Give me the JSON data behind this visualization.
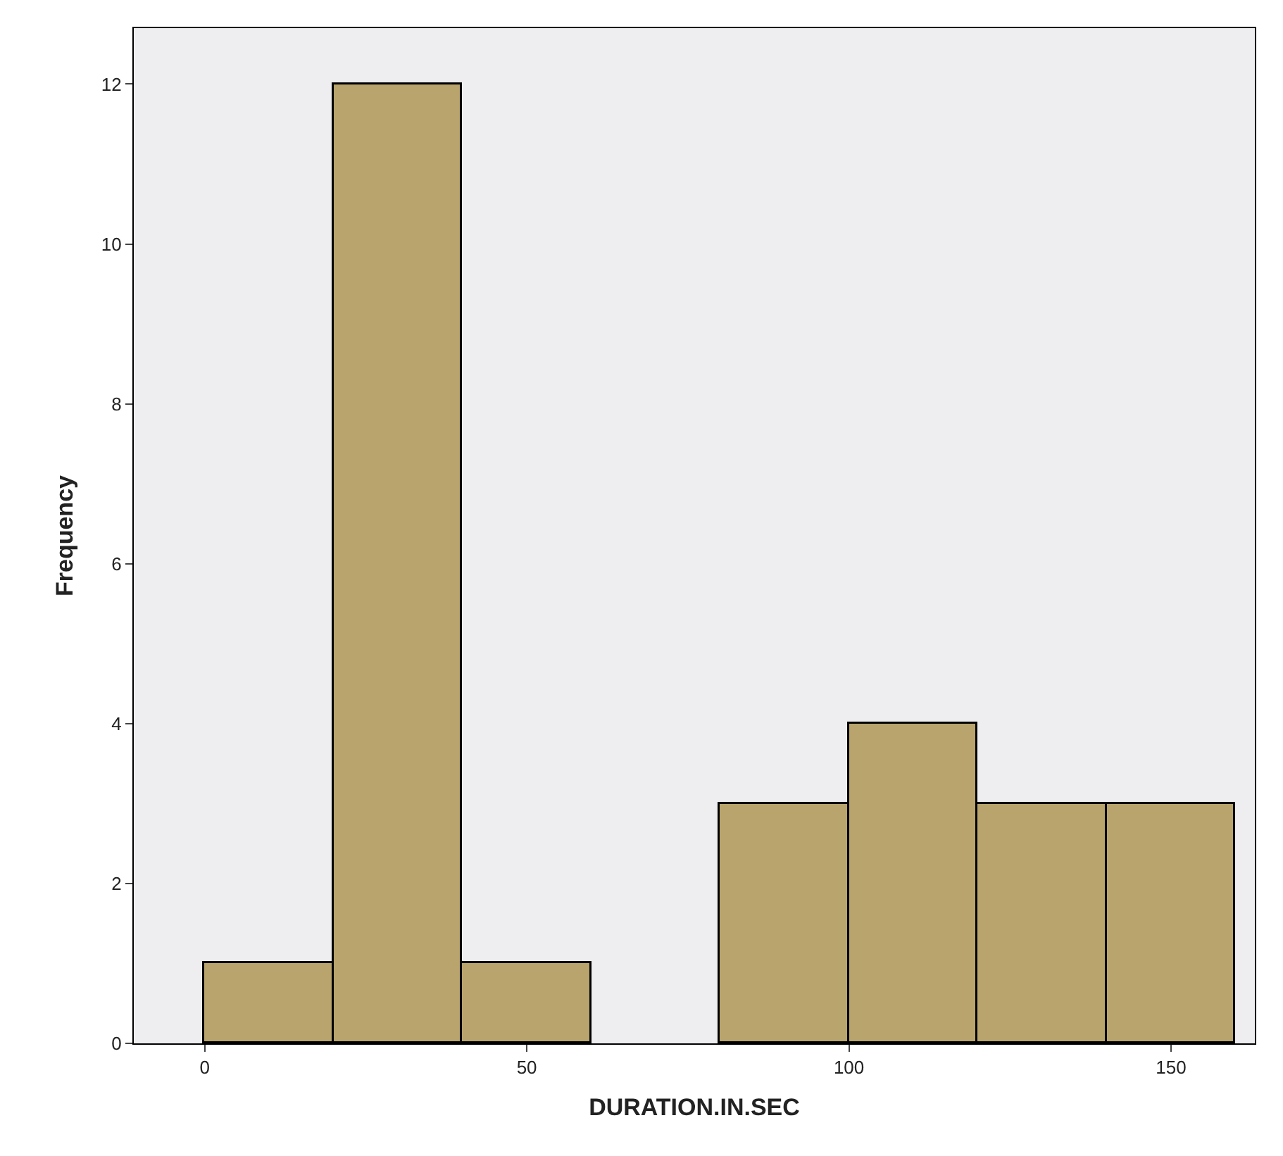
{
  "chart_data": {
    "type": "histogram",
    "xlabel": "DURATION.IN.SEC",
    "ylabel": "Frequency",
    "bins": [
      0,
      20,
      40,
      60,
      80,
      100,
      120,
      140,
      160
    ],
    "values": [
      1,
      12,
      1,
      0,
      3,
      4,
      3,
      3
    ],
    "color": "#b8a46c",
    "xlim": [
      -11,
      163
    ],
    "xticks": [
      0,
      50,
      100,
      150
    ],
    "ylim": [
      0,
      12.7
    ],
    "yticks": [
      0,
      2,
      4,
      6,
      8,
      10,
      12
    ],
    "grid": false
  }
}
